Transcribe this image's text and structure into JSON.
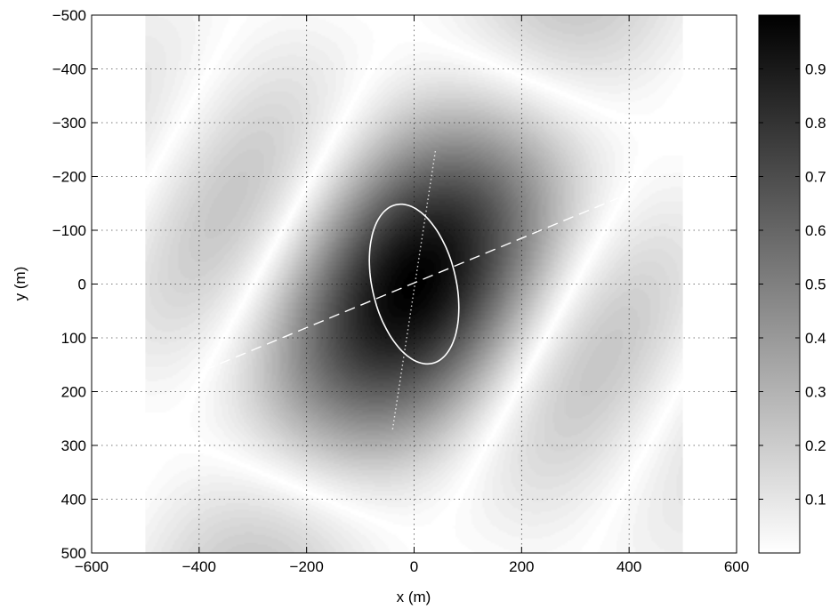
{
  "chart_data": {
    "type": "heatmap",
    "title": "",
    "xlabel": "x (m)",
    "ylabel": "y (m)",
    "xlim": [
      -600,
      600
    ],
    "ylim": [
      -500,
      500
    ],
    "y_axis_direction": "reversed",
    "x_ticks": [
      -600,
      -400,
      -200,
      0,
      200,
      400,
      600
    ],
    "x_tick_labels": [
      "−600",
      "−400",
      "−200",
      "0",
      "200",
      "400",
      "600"
    ],
    "y_ticks": [
      -500,
      -400,
      -300,
      -200,
      -100,
      0,
      100,
      200,
      300,
      400,
      500
    ],
    "y_tick_labels": [
      "−500",
      "−400",
      "−300",
      "−200",
      "−100",
      "0",
      "100",
      "200",
      "300",
      "400",
      "500"
    ],
    "grid": true,
    "data_extent": {
      "x": [
        -500,
        500
      ],
      "y": [
        -500,
        500
      ]
    },
    "colormap": "gray_reversed",
    "colorbar": {
      "range": [
        0,
        1
      ],
      "ticks": [
        0.1,
        0.2,
        0.3,
        0.4,
        0.5,
        0.6,
        0.7,
        0.8,
        0.9
      ],
      "tick_labels": [
        "0.1",
        "0.2",
        "0.3",
        "0.4",
        "0.5",
        "0.6",
        "0.7",
        "0.8",
        "0.9"
      ]
    },
    "field": {
      "description_type": "sinc-like beam pattern",
      "peak": {
        "x": 0,
        "y": 0,
        "value": 1.0
      },
      "major_lobe_zero_crossings_along_x": [
        -300,
        300
      ],
      "side_lobe_value": 0.35
    },
    "overlays": [
      {
        "type": "ellipse",
        "style": "solid",
        "color": "#ffffff",
        "center": [
          0,
          0
        ],
        "extent_x": [
          -130,
          130
        ],
        "extent_y": [
          -165,
          165
        ],
        "tilt_deg": -30
      },
      {
        "type": "line",
        "style": "dashed",
        "color": "#ffffff",
        "points": [
          [
            -390,
            160
          ],
          [
            380,
            -160
          ]
        ]
      },
      {
        "type": "line",
        "style": "dotted",
        "color": "#ffffff",
        "points": [
          [
            -40,
            270
          ],
          [
            40,
            -250
          ]
        ]
      }
    ]
  }
}
